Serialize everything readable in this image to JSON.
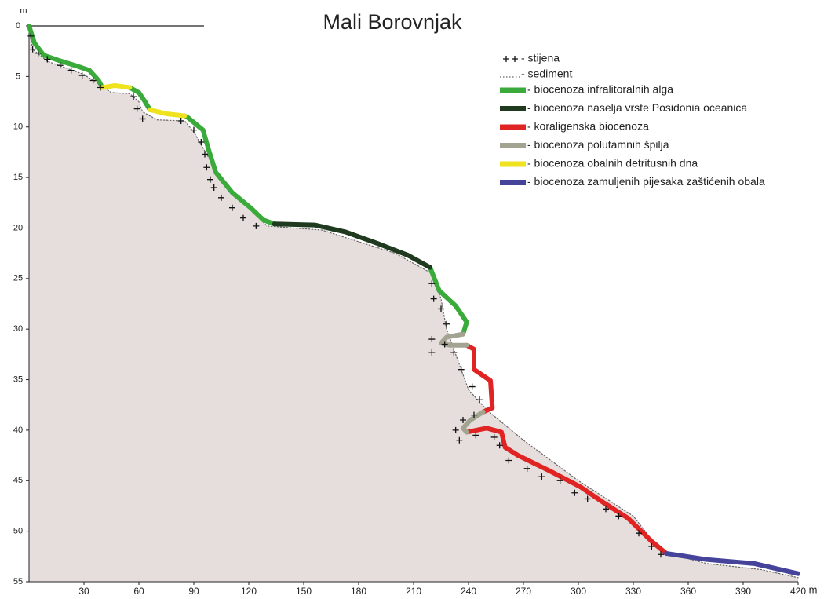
{
  "chart_data": {
    "type": "depth-profile",
    "title": "Mali Borovnjak",
    "x_label": "m",
    "y_label": "m",
    "xlim": [
      0,
      420
    ],
    "xticks": [
      30,
      60,
      90,
      120,
      150,
      180,
      210,
      240,
      270,
      300,
      330,
      360,
      390,
      420
    ],
    "ylim": [
      0,
      55
    ],
    "yticks": [
      0,
      5,
      10,
      15,
      20,
      25,
      30,
      35,
      40,
      45,
      50,
      55
    ],
    "y_inverted": true,
    "ground_color": "#e6dedc",
    "series": [
      {
        "name": "- stijena",
        "style": "markers",
        "color": "#111111",
        "x": [
          1,
          2,
          5,
          10,
          17,
          23,
          29,
          35,
          39,
          57,
          59,
          62,
          83,
          90,
          94,
          96,
          97,
          99,
          101,
          105,
          111,
          117,
          124,
          220,
          221,
          225,
          228,
          220,
          227,
          220,
          232,
          236,
          242,
          246,
          243,
          237,
          233,
          235,
          244,
          254,
          257,
          262,
          272,
          280,
          290,
          298,
          305,
          315,
          322,
          333,
          340,
          345
        ],
        "values": [
          1,
          2.3,
          2.7,
          3.3,
          3.9,
          4.4,
          4.9,
          5.4,
          6.1,
          7,
          8.2,
          9.2,
          9.4,
          10.3,
          11.5,
          12.7,
          14,
          15.2,
          16,
          17,
          18,
          19,
          19.8,
          25.5,
          27,
          28,
          29.5,
          31,
          31.5,
          32.3,
          32.3,
          34,
          35.7,
          37,
          38.5,
          39,
          40,
          41,
          40.5,
          40.7,
          41.5,
          43,
          43.8,
          44.6,
          45,
          46.2,
          46.8,
          47.8,
          48.5,
          50.2,
          51.5,
          52.3
        ]
      },
      {
        "name": "- sediment",
        "style": "dotted",
        "color": "#666666",
        "x": [
          0,
          2,
          10,
          30,
          45,
          55,
          60,
          62,
          70,
          85,
          90,
          98,
          105,
          120,
          130,
          160,
          200,
          220,
          225,
          228,
          232,
          236,
          240,
          250,
          270,
          300,
          330,
          345,
          370,
          400,
          420
        ],
        "values": [
          0.3,
          2.3,
          3.5,
          4.8,
          6.6,
          6.7,
          7.5,
          8.5,
          9.3,
          9.4,
          10.5,
          13,
          15.5,
          18,
          19.8,
          20.2,
          22.5,
          24.5,
          27,
          30,
          32,
          34,
          36,
          38,
          41,
          45,
          48.5,
          52,
          53.2,
          53.8,
          54.6
        ]
      },
      {
        "name": "- biocenoza infralitoralnih alga",
        "style": "solid",
        "color": "#3aaa3a",
        "x": [
          0,
          3,
          8,
          16,
          25,
          33,
          38,
          40,
          null,
          55,
          60,
          63,
          66,
          null,
          85,
          87,
          95,
          98,
          102,
          111,
          121,
          128,
          134,
          null,
          219,
          224,
          233,
          239,
          237
        ],
        "values": [
          0,
          1.7,
          2.9,
          3.4,
          3.9,
          4.4,
          5.4,
          6.1,
          null,
          6.1,
          6.6,
          7.4,
          8.3,
          null,
          8.9,
          9.1,
          10.3,
          12.2,
          14.5,
          16.5,
          18,
          19.2,
          19.6,
          null,
          23.9,
          26.2,
          27.7,
          29.3,
          30.5
        ]
      },
      {
        "name": "- biocenoza naselja vrste Posidonia oceanica",
        "style": "solid",
        "color": "#1f3a1f",
        "x": [
          134,
          156,
          173,
          190,
          207,
          219
        ],
        "values": [
          19.6,
          19.7,
          20.4,
          21.5,
          22.7,
          23.9
        ]
      },
      {
        "name": "- koraligenska biocenoza",
        "style": "solid",
        "color": "#e02424",
        "x": [
          239,
          243,
          243,
          252,
          253,
          248,
          null,
          239,
          250,
          258,
          260,
          267,
          284,
          301,
          314,
          327,
          340,
          348
        ],
        "values": [
          31.6,
          32,
          34,
          35.1,
          37.8,
          38.2,
          null,
          40.2,
          39.8,
          40.2,
          41.7,
          42.5,
          44,
          45.6,
          47.2,
          48.7,
          51,
          52.2
        ]
      },
      {
        "name": "- biocenoza polutamnih špilja",
        "style": "solid",
        "color": "#a3a392",
        "x": [
          237,
          228,
          225,
          230,
          239,
          null,
          248,
          241,
          237,
          239
        ],
        "values": [
          30.5,
          30.8,
          31.4,
          31.6,
          31.6,
          null,
          38.2,
          39,
          39.8,
          40.2
        ]
      },
      {
        "name": "- biocenoza obalnih detritusnih dna",
        "style": "solid",
        "color": "#efe21e",
        "x": [
          40,
          47,
          55,
          null,
          66,
          75,
          85
        ],
        "values": [
          6.1,
          5.9,
          6.1,
          null,
          8.3,
          8.7,
          8.9
        ]
      },
      {
        "name": "- biocenoza zamuljenih pijesaka zaštićenih obala",
        "style": "solid",
        "color": "#46439a",
        "x": [
          348,
          370,
          396,
          420
        ],
        "values": [
          52.2,
          52.8,
          53.2,
          54.2
        ]
      }
    ]
  }
}
